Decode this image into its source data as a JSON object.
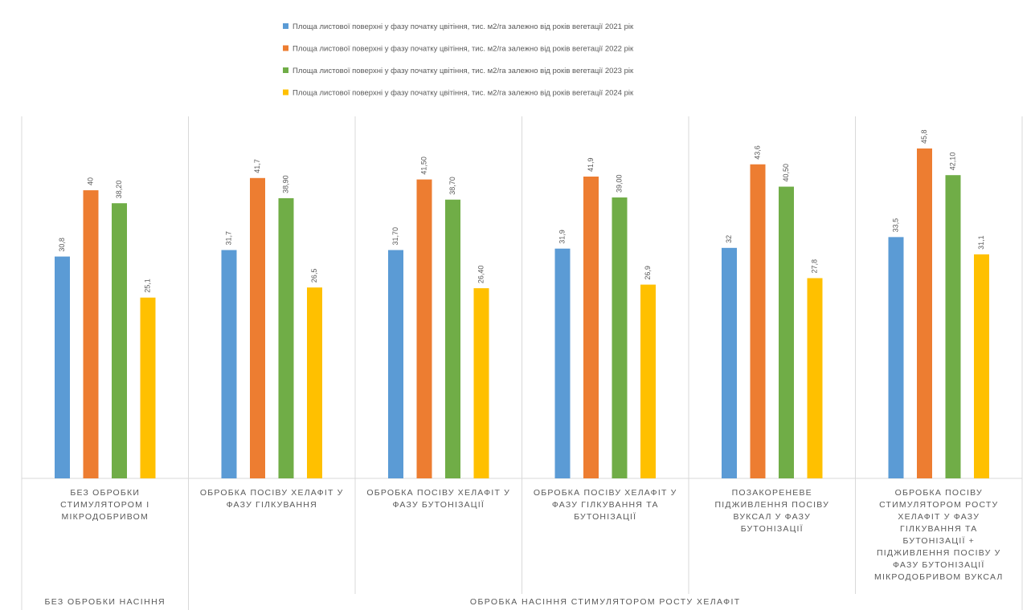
{
  "chart_data": {
    "type": "bar",
    "title": "",
    "xlabel": "",
    "ylabel": "",
    "ylim": [
      0,
      50
    ],
    "grid": false,
    "legend_position": "top",
    "group_labels": [
      {
        "label": "БЕЗ ОБРОБКИ НАСІННЯ",
        "categories": [
          0
        ]
      },
      {
        "label": "ОБРОБКА НАСІННЯ СТИМУЛЯТОРОМ РОСТУ ХЕЛАФІТ",
        "categories": [
          1,
          2,
          3,
          4,
          5
        ]
      }
    ],
    "categories": [
      [
        "БЕЗ ОБРОБКИ",
        "СТИМУЛЯТОРОМ І",
        "МІКРОДОБРИВОМ"
      ],
      [
        "ОБРОБКА ПОСІВУ ХЕЛАФІТ У",
        "ФАЗУ ГІЛКУВАННЯ"
      ],
      [
        "ОБРОБКА ПОСІВУ ХЕЛАФІТ У",
        "ФАЗУ БУТОНІЗАЦІЇ"
      ],
      [
        "ОБРОБКА ПОСІВУ ХЕЛАФІТ У",
        "ФАЗУ ГІЛКУВАННЯ ТА",
        "БУТОНІЗАЦІЇ"
      ],
      [
        "ПОЗАКОРЕНЕВЕ",
        "ПІДЖИВЛЕННЯ ПОСІВУ",
        "ВУКСАЛ У ФАЗУ",
        "БУТОНІЗАЦІЇ"
      ],
      [
        "ОБРОБКА ПОСІВУ",
        "СТИМУЛЯТОРОМ РОСТУ",
        "ХЕЛАФІТ У ФАЗУ",
        "ГІЛКУВАННЯ ТА",
        "БУТОНІЗАЦІЇ +",
        "ПІДЖИВЛЕННЯ ПОСІВУ У",
        "ФАЗУ БУТОНІЗАЦІЇ",
        "МІКРОДОБРИВОМ ВУКСАЛ"
      ]
    ],
    "series": [
      {
        "name": "Площа листової поверхні у фазу початку цвітіння, тис. м2/га залежно від років вегетації 2021 рік",
        "color": "#5B9BD5",
        "values": [
          30.8,
          31.7,
          31.7,
          31.9,
          32,
          33.5
        ],
        "labels": [
          "30,8",
          "31,7",
          "31,70",
          "31,9",
          "32",
          "33,5"
        ]
      },
      {
        "name": "Площа листової поверхні у фазу початку цвітіння, тис. м2/га залежно від років вегетації 2022 рік",
        "color": "#ED7D31",
        "values": [
          40,
          41.7,
          41.5,
          41.9,
          43.6,
          45.8
        ],
        "labels": [
          "40",
          "41,7",
          "41,50",
          "41,9",
          "43,6",
          "45,8"
        ]
      },
      {
        "name": "Площа листової поверхні у фазу початку цвітіння, тис. м2/га залежно від років вегетації 2023 рік",
        "color": "#70AD47",
        "values": [
          38.2,
          38.9,
          38.7,
          39.0,
          40.5,
          42.1
        ],
        "labels": [
          "38,20",
          "38,90",
          "38,70",
          "39,00",
          "40,50",
          "42,10"
        ]
      },
      {
        "name": "Площа листової поверхні у фазу початку цвітіння, тис. м2/га залежно від років вегетації 2024 рік",
        "color": "#FFC000",
        "values": [
          25.1,
          26.5,
          26.4,
          26.9,
          27.8,
          31.1
        ],
        "labels": [
          "25,1",
          "26,5",
          "26,40",
          "26,9",
          "27,8",
          "31,1"
        ]
      }
    ]
  }
}
